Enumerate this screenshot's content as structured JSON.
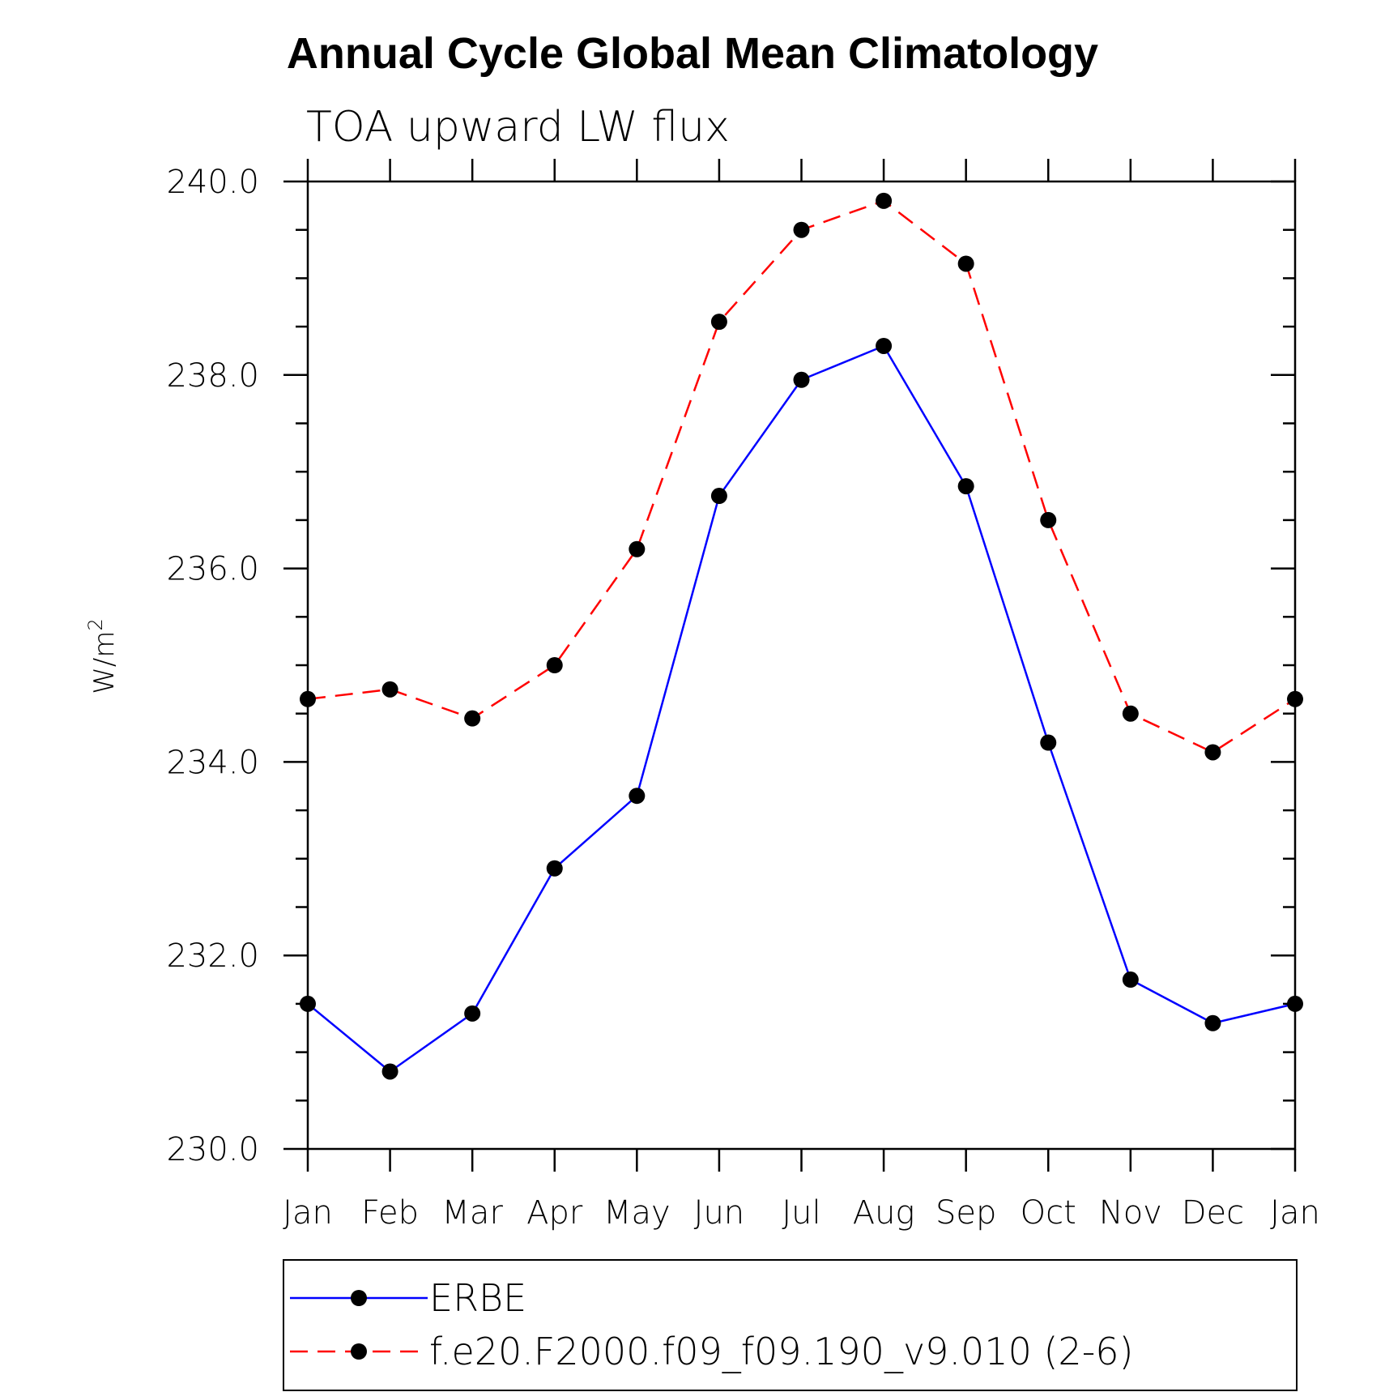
{
  "chart_data": {
    "type": "line",
    "title": "Annual Cycle Global Mean Climatology",
    "subtitle": "TOA upward LW flux",
    "ylabel": "W/m",
    "ylabel_superscript": "2",
    "xlabel": "",
    "categories": [
      "Jan",
      "Feb",
      "Mar",
      "Apr",
      "May",
      "Jun",
      "Jul",
      "Aug",
      "Sep",
      "Oct",
      "Nov",
      "Dec",
      "Jan"
    ],
    "ylim": [
      230.0,
      240.0
    ],
    "yticks": [
      "230.0",
      "232.0",
      "234.0",
      "236.0",
      "238.0",
      "240.0"
    ],
    "grid": false,
    "legend_position": "bottom",
    "series": [
      {
        "name": "ERBE",
        "color": "#0000ff",
        "dash": "solid",
        "marker": "filled-circle",
        "values": [
          231.5,
          230.8,
          231.4,
          232.9,
          233.65,
          236.75,
          237.95,
          238.3,
          236.85,
          234.2,
          231.75,
          231.3,
          231.5
        ]
      },
      {
        "name": "f.e20.F2000.f09_f09.190_v9.010 (2-6)",
        "color": "#ff0000",
        "dash": "dashed",
        "marker": "filled-circle",
        "values": [
          234.65,
          234.75,
          234.45,
          235.0,
          236.2,
          238.55,
          239.5,
          239.8,
          239.15,
          236.5,
          234.5,
          234.1,
          234.65
        ]
      }
    ]
  }
}
